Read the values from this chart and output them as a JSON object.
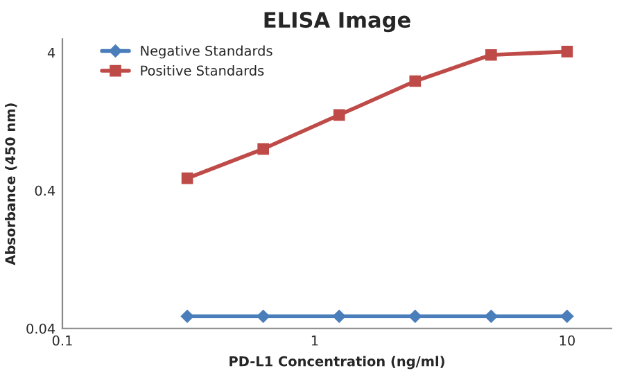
{
  "chart_data": {
    "type": "line",
    "title": "ELISA Image",
    "xlabel": "PD-L1 Concentration (ng/ml)",
    "ylabel": "Absorbance (450 nm)",
    "x": [
      0.3125,
      0.625,
      1.25,
      2.5,
      5,
      10
    ],
    "series": [
      {
        "name": "Negative Standards",
        "color": "#4a7ebb",
        "marker": "diamond",
        "values": [
          0.049,
          0.049,
          0.049,
          0.049,
          0.049,
          0.049
        ]
      },
      {
        "name": "Positive Standards",
        "color": "#be4b48",
        "marker": "square",
        "values": [
          0.49,
          0.8,
          1.41,
          2.48,
          3.84,
          4.06
        ]
      }
    ],
    "log": "xy",
    "xlim": [
      0.1,
      15
    ],
    "ylim": [
      0.04,
      5
    ],
    "xticks": [
      0.1,
      1,
      10
    ],
    "yticks": [
      0.04,
      0.4,
      4
    ],
    "grid": false,
    "legend": "top left",
    "line_style": "solid"
  }
}
